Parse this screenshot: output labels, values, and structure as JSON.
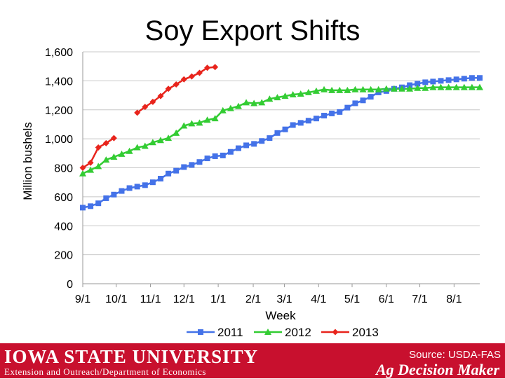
{
  "chart_data": {
    "type": "line",
    "title": "Soy Export Shifts",
    "xlabel": "Week",
    "ylabel": "Million bushels",
    "ylim": [
      0,
      1600
    ],
    "yticks": [
      0,
      200,
      400,
      600,
      800,
      1000,
      1200,
      1400,
      1600
    ],
    "ytick_labels": [
      "0",
      "200",
      "400",
      "600",
      "800",
      "1,000",
      "1,200",
      "1,400",
      "1,600"
    ],
    "xlim": [
      0,
      51
    ],
    "xticks": [
      0,
      4.3,
      8.7,
      13,
      17.4,
      21.9,
      25.9,
      30.3,
      34.6,
      39,
      43.3,
      47.7
    ],
    "xtick_labels": [
      "9/1",
      "10/1",
      "11/1",
      "12/1",
      "1/1",
      "2/1",
      "3/1",
      "4/1",
      "5/1",
      "6/1",
      "7/1",
      "8/1"
    ],
    "grid": "horizontal",
    "legend_position": "bottom",
    "series": [
      {
        "name": "2011",
        "color": "#4472e8",
        "marker": "square",
        "x": [
          0,
          1,
          2,
          3,
          4,
          5,
          6,
          7,
          8,
          9,
          10,
          11,
          12,
          13,
          14,
          15,
          16,
          17,
          18,
          19,
          20,
          21,
          22,
          23,
          24,
          25,
          26,
          27,
          28,
          29,
          30,
          31,
          32,
          33,
          34,
          35,
          36,
          37,
          38,
          39,
          40,
          41,
          42,
          43,
          44,
          45,
          46,
          47,
          48,
          49,
          50,
          51
        ],
        "values": [
          525,
          535,
          555,
          590,
          615,
          640,
          660,
          670,
          680,
          700,
          725,
          760,
          780,
          805,
          820,
          840,
          865,
          880,
          885,
          910,
          935,
          955,
          965,
          985,
          1005,
          1040,
          1065,
          1095,
          1110,
          1125,
          1140,
          1160,
          1175,
          1185,
          1215,
          1245,
          1265,
          1290,
          1320,
          1330,
          1345,
          1355,
          1370,
          1380,
          1390,
          1395,
          1400,
          1405,
          1410,
          1415,
          1420,
          1420
        ]
      },
      {
        "name": "2012",
        "color": "#33cc33",
        "marker": "triangle",
        "x": [
          0,
          1,
          2,
          3,
          4,
          5,
          6,
          7,
          8,
          9,
          10,
          11,
          12,
          13,
          14,
          15,
          16,
          17,
          18,
          19,
          20,
          21,
          22,
          23,
          24,
          25,
          26,
          27,
          28,
          29,
          30,
          31,
          32,
          33,
          34,
          35,
          36,
          37,
          38,
          39,
          40,
          41,
          42,
          43,
          44,
          45,
          46,
          47,
          48,
          49,
          50,
          51
        ],
        "values": [
          760,
          785,
          810,
          855,
          875,
          895,
          915,
          940,
          950,
          975,
          990,
          1005,
          1040,
          1090,
          1105,
          1110,
          1130,
          1140,
          1195,
          1210,
          1225,
          1250,
          1245,
          1250,
          1275,
          1285,
          1295,
          1305,
          1310,
          1320,
          1330,
          1340,
          1335,
          1335,
          1335,
          1340,
          1340,
          1340,
          1340,
          1345,
          1345,
          1345,
          1345,
          1350,
          1350,
          1355,
          1355,
          1355,
          1355,
          1355,
          1355,
          1355
        ]
      },
      {
        "name": "2013",
        "color": "#e8241c",
        "marker": "diamond",
        "segments": [
          {
            "x": [
              0,
              1,
              2,
              3,
              4
            ],
            "values": [
              800,
              835,
              940,
              970,
              1005
            ]
          },
          {
            "x": [
              7,
              8,
              9,
              10,
              11,
              12,
              13,
              14,
              15,
              16,
              17
            ],
            "values": [
              1180,
              1220,
              1255,
              1295,
              1345,
              1375,
              1410,
              1430,
              1455,
              1490,
              1495
            ]
          }
        ]
      }
    ]
  },
  "footer": {
    "university": "IOWA STATE UNIVERSITY",
    "department": "Extension and Outreach/Department of Economics",
    "source": "Source: USDA-FAS",
    "brand": "Ag Decision Maker",
    "background": "#c8102e"
  }
}
